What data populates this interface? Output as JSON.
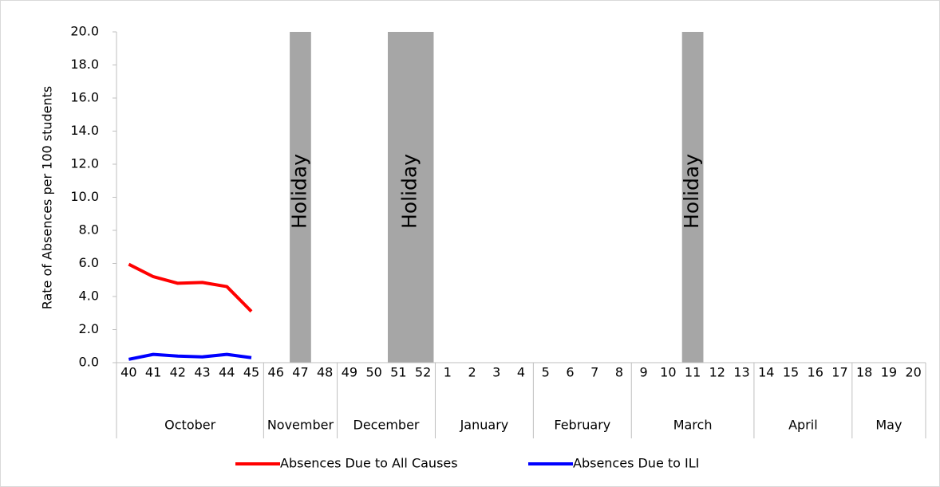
{
  "chart_data": {
    "type": "line",
    "y_label": "Rate of Absences per 100 students",
    "categories": [
      "40",
      "41",
      "42",
      "43",
      "44",
      "45",
      "46",
      "47",
      "48",
      "49",
      "50",
      "51",
      "52",
      "1",
      "2",
      "3",
      "4",
      "5",
      "6",
      "7",
      "8",
      "9",
      "10",
      "11",
      "12",
      "13",
      "14",
      "15",
      "16",
      "17",
      "18",
      "19",
      "20"
    ],
    "groups": [
      {
        "label": "October",
        "from": "40",
        "to": "45"
      },
      {
        "label": "November",
        "from": "46",
        "to": "48"
      },
      {
        "label": "December",
        "from": "49",
        "to": "52"
      },
      {
        "label": "January",
        "from": "1",
        "to": "4"
      },
      {
        "label": "February",
        "from": "5",
        "to": "8"
      },
      {
        "label": "March",
        "from": "9",
        "to": "13"
      },
      {
        "label": "April",
        "from": "14",
        "to": "17"
      },
      {
        "label": "May",
        "from": "18",
        "to": "20"
      }
    ],
    "holidays": [
      {
        "label": "Holiday",
        "from": "47",
        "to": "47"
      },
      {
        "label": "Holiday",
        "from": "51",
        "to": "52"
      },
      {
        "label": "Holiday",
        "from": "11",
        "to": "11"
      }
    ],
    "holiday_color": "#a6a6a6",
    "series": [
      {
        "name": "Absences Due to All Causes",
        "color": "#ff0000",
        "values": [
          5.95,
          5.2,
          4.8,
          4.85,
          4.6,
          3.1,
          null,
          null,
          null,
          null,
          null,
          null,
          null,
          null,
          null,
          null,
          null,
          null,
          null,
          null,
          null,
          null,
          null,
          null,
          null,
          null,
          null,
          null,
          null,
          null,
          null,
          null,
          null
        ]
      },
      {
        "name": "Absences Due to ILI",
        "color": "#0000ff",
        "values": [
          0.2,
          0.5,
          0.4,
          0.35,
          0.5,
          0.3,
          null,
          null,
          null,
          null,
          null,
          null,
          null,
          null,
          null,
          null,
          null,
          null,
          null,
          null,
          null,
          null,
          null,
          null,
          null,
          null,
          null,
          null,
          null,
          null,
          null,
          null,
          null
        ]
      }
    ],
    "ylim": [
      0,
      20
    ],
    "yticks": [
      {
        "value": 0,
        "label": "0.0"
      },
      {
        "value": 2,
        "label": "2.0"
      },
      {
        "value": 4,
        "label": "4.0"
      },
      {
        "value": 6,
        "label": "6.0"
      },
      {
        "value": 8,
        "label": "8.0"
      },
      {
        "value": 10,
        "label": "10.0"
      },
      {
        "value": 12,
        "label": "12.0"
      },
      {
        "value": 14,
        "label": "14.0"
      },
      {
        "value": 16,
        "label": "16.0"
      },
      {
        "value": 18,
        "label": "18.0"
      },
      {
        "value": 20,
        "label": "20.0"
      }
    ],
    "grid": false,
    "legend": "bottom"
  }
}
